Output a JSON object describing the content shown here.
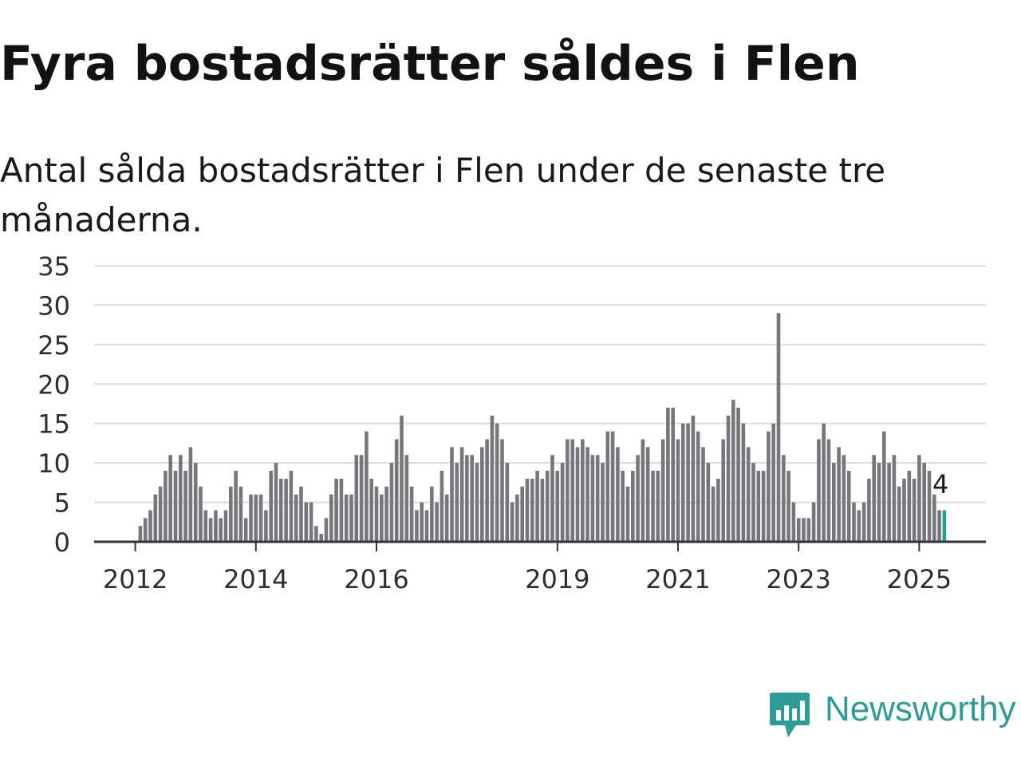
{
  "title": "Fyra bostadsrätter såldes i Flen",
  "subtitle": "Antal sålda bostadsrätter i Flen under de senaste tre månaderna.",
  "brand": {
    "name": "Newsworthy",
    "icon": "newsworthy-logo-icon",
    "color": "#2e9c94"
  },
  "chart_data": {
    "type": "bar",
    "title": "",
    "xlabel": "",
    "ylabel": "",
    "ylim": [
      0,
      35
    ],
    "yticks": [
      0,
      5,
      10,
      15,
      20,
      25,
      30,
      35
    ],
    "grid": true,
    "xticks": [
      "2012",
      "2014",
      "2016",
      "2019",
      "2021",
      "2023",
      "2025"
    ],
    "first_period": "2011-06",
    "period": "month",
    "bar_color": "#77767c",
    "highlight_color": "#1fa398",
    "highlight_last": true,
    "last_label": "4",
    "values": [
      0,
      0,
      0,
      0,
      0,
      0,
      0,
      0,
      2,
      3,
      4,
      6,
      7,
      9,
      11,
      9,
      11,
      9,
      12,
      10,
      7,
      4,
      3,
      4,
      3,
      4,
      7,
      9,
      7,
      3,
      6,
      6,
      6,
      4,
      9,
      10,
      8,
      8,
      9,
      6,
      7,
      5,
      5,
      2,
      1,
      3,
      6,
      8,
      8,
      6,
      6,
      11,
      11,
      14,
      8,
      7,
      6,
      7,
      10,
      13,
      16,
      11,
      7,
      4,
      5,
      4,
      7,
      5,
      9,
      6,
      12,
      10,
      12,
      11,
      11,
      10,
      12,
      13,
      16,
      15,
      13,
      10,
      5,
      6,
      7,
      8,
      8,
      9,
      8,
      9,
      11,
      9,
      10,
      13,
      13,
      12,
      13,
      12,
      11,
      11,
      10,
      14,
      14,
      12,
      9,
      7,
      9,
      11,
      13,
      12,
      9,
      9,
      13,
      17,
      17,
      13,
      15,
      15,
      16,
      14,
      12,
      10,
      7,
      8,
      13,
      16,
      18,
      17,
      15,
      12,
      10,
      9,
      9,
      14,
      15,
      29,
      11,
      9,
      5,
      3,
      3,
      3,
      5,
      13,
      15,
      13,
      10,
      12,
      11,
      9,
      5,
      4,
      5,
      8,
      11,
      10,
      14,
      10,
      11,
      7,
      8,
      9,
      8,
      11,
      10,
      9,
      6,
      4,
      4
    ]
  }
}
